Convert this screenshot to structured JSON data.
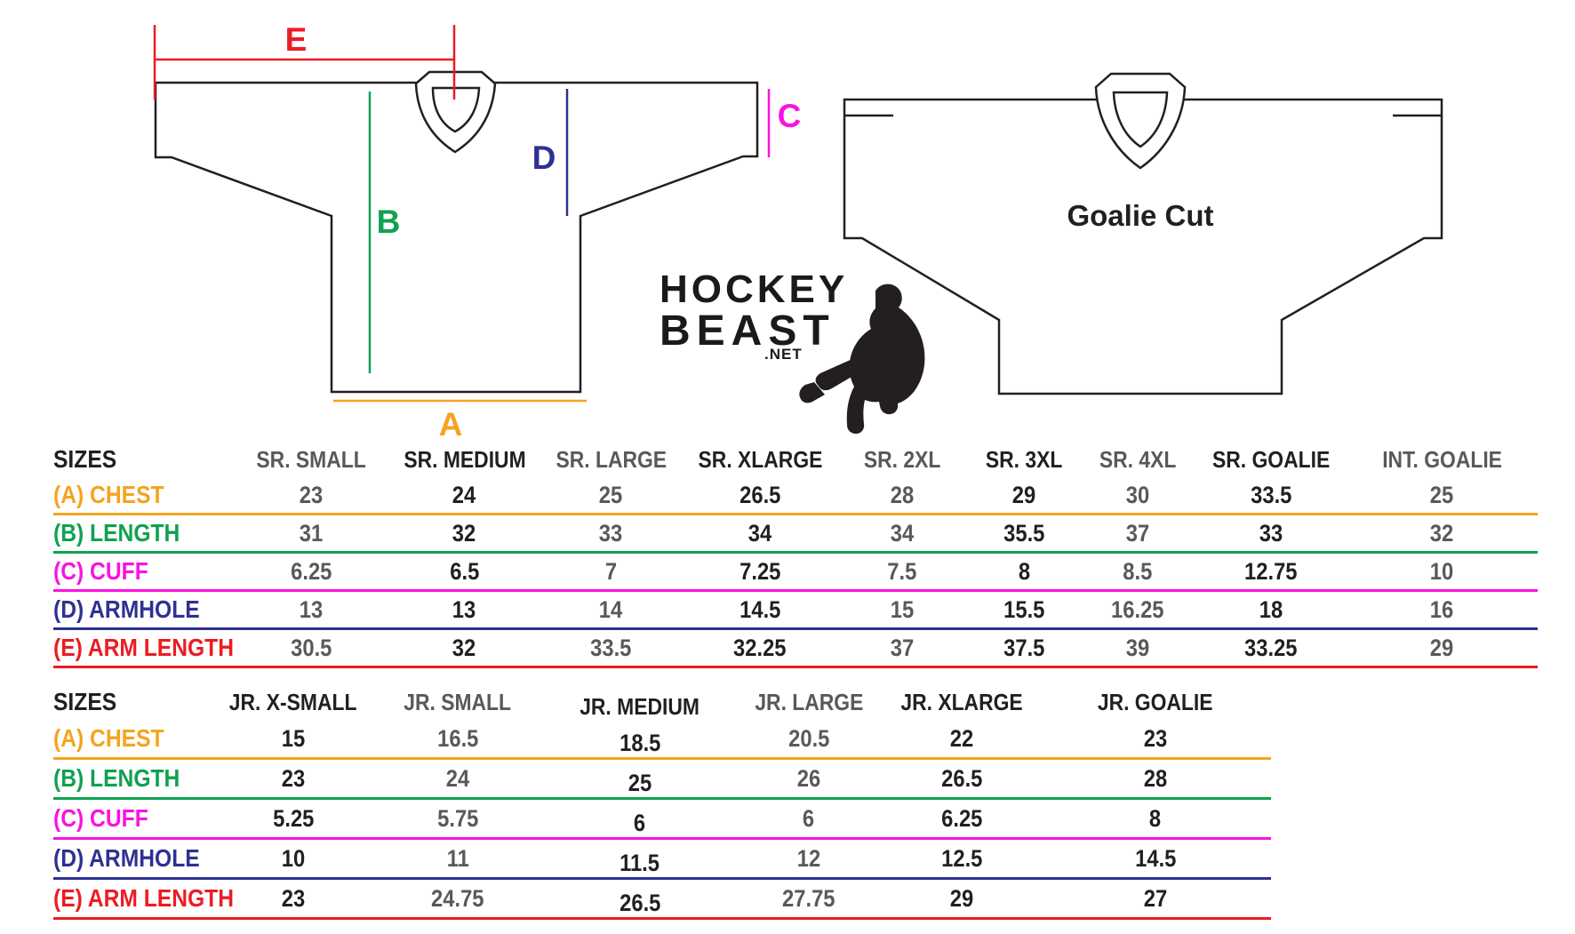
{
  "colors": {
    "orange": "#F5A41F",
    "green": "#0FA24F",
    "magenta": "#FA12E2",
    "navy": "#2E3192",
    "red": "#EC1C24",
    "black": "#231F20",
    "gray": "#58595B"
  },
  "diagram": {
    "measure_labels": {
      "A": "A",
      "B": "B",
      "C": "C",
      "D": "D",
      "E": "E"
    },
    "goalie_label": "Goalie Cut",
    "logo": {
      "line1": "HOCKEY",
      "line2": "BEAST",
      "line3": ".NET"
    }
  },
  "senior_table": {
    "size_col_header": "SIZES",
    "header": [
      "SR. SMALL",
      "SR. MEDIUM",
      "SR. LARGE",
      "SR. XLARGE",
      "SR. 2XL",
      "SR. 3XL",
      "SR. 4XL",
      "SR. GOALIE",
      "INT. GOALIE"
    ],
    "column_shades": [
      "gray",
      "black",
      "gray",
      "black",
      "gray",
      "black",
      "gray",
      "black",
      "gray"
    ],
    "rows": [
      {
        "label": "(A) CHEST",
        "color": "orange",
        "values": [
          "23",
          "24",
          "25",
          "26.5",
          "28",
          "29",
          "30",
          "33.5",
          "25"
        ]
      },
      {
        "label": "(B) LENGTH",
        "color": "green",
        "values": [
          "31",
          "32",
          "33",
          "34",
          "34",
          "35.5",
          "37",
          "33",
          "32"
        ]
      },
      {
        "label": "(C) CUFF",
        "color": "magenta",
        "values": [
          "6.25",
          "6.5",
          "7",
          "7.25",
          "7.5",
          "8",
          "8.5",
          "12.75",
          "10"
        ]
      },
      {
        "label": "(D) ARMHOLE",
        "color": "navy",
        "values": [
          "13",
          "13",
          "14",
          "14.5",
          "15",
          "15.5",
          "16.25",
          "18",
          "16"
        ]
      },
      {
        "label": "(E) ARM LENGTH",
        "color": "red",
        "values": [
          "30.5",
          "32",
          "33.5",
          "32.25",
          "37",
          "37.5",
          "39",
          "33.25",
          "29"
        ]
      }
    ]
  },
  "junior_table": {
    "size_col_header": "SIZES",
    "header": [
      "JR. X-SMALL",
      "JR. SMALL",
      "JR. MEDIUM",
      "JR. LARGE",
      "JR. XLARGE",
      "JR. GOALIE"
    ],
    "column_shades": [
      "black",
      "gray",
      "black",
      "gray",
      "black",
      "black"
    ],
    "rows": [
      {
        "label": "(A) CHEST",
        "color": "orange",
        "values": [
          "15",
          "16.5",
          "18.5",
          "20.5",
          "22",
          "23"
        ]
      },
      {
        "label": "(B) LENGTH",
        "color": "green",
        "values": [
          "23",
          "24",
          "25",
          "26",
          "26.5",
          "28"
        ]
      },
      {
        "label": "(C) CUFF",
        "color": "magenta",
        "values": [
          "5.25",
          "5.75",
          "6",
          "6",
          "6.25",
          "8"
        ]
      },
      {
        "label": "(D) ARMHOLE",
        "color": "navy",
        "values": [
          "10",
          "11",
          "11.5",
          "12",
          "12.5",
          "14.5"
        ]
      },
      {
        "label": "(E) ARM LENGTH",
        "color": "red",
        "values": [
          "23",
          "24.75",
          "26.5",
          "27.75",
          "29",
          "27"
        ]
      }
    ]
  }
}
